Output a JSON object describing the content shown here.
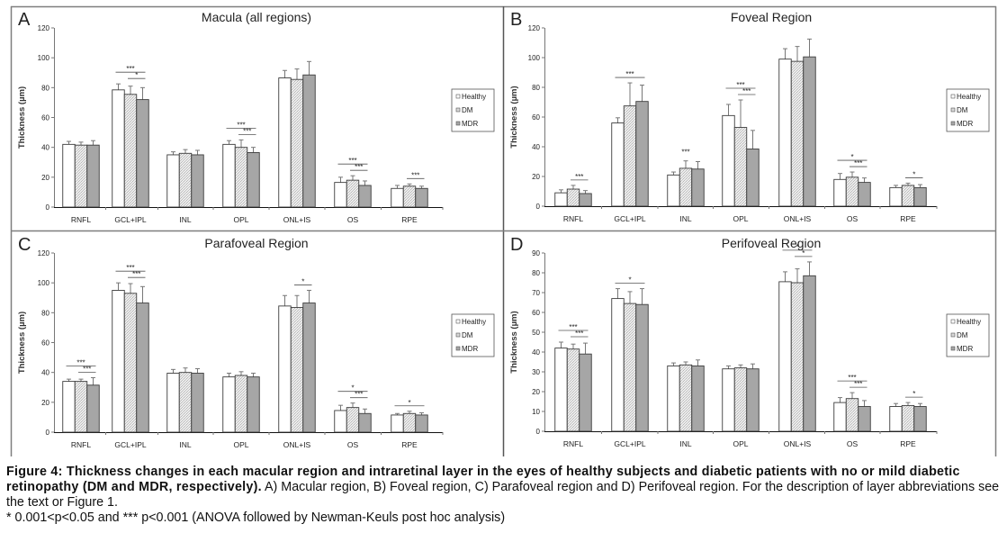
{
  "figure": {
    "caption_bold": "Figure 4: Thickness changes in each macular region and intraretinal layer in the eyes of healthy subjects and diabetic patients with no or mild diabetic retinopathy (DM and MDR, respectively).",
    "caption_rest": " A) Macular region, B) Foveal region, C) Parafoveal region and D) Perifoveal region. For the description of layer abbreviations see the text or Figure 1.",
    "caption_note": "* 0.001<p<0.05 and *** p<0.001 (ANOVA followed by Newman-Keuls post hoc analysis)"
  },
  "colors": {
    "healthy": "#ffffff",
    "dm": "#e4e4e4",
    "mdr": "#a6a6a6",
    "border": "#7f7f7f",
    "bar_outline": "#3c3c3c"
  },
  "chart_data": [
    {
      "type": "bar",
      "panel": "A",
      "title": "Macula (all regions)",
      "xlabel": "",
      "ylabel": "Thickness (µm)",
      "ylim": [
        0,
        120
      ],
      "yticks": [
        0,
        20,
        40,
        60,
        80,
        100,
        120
      ],
      "grid": false,
      "legend": "right",
      "categories": [
        "RNFL",
        "GCL+IPL",
        "INL",
        "OPL",
        "ONL+IS",
        "OS",
        "RPE"
      ],
      "series": [
        {
          "name": "Healthy",
          "values": [
            42,
            78.5,
            35,
            42,
            86.5,
            16.5,
            12.5
          ],
          "errors": [
            2,
            4,
            2,
            2.5,
            5,
            3.5,
            2
          ]
        },
        {
          "name": "DM",
          "values": [
            41.5,
            75.5,
            36,
            40,
            85.5,
            18,
            14
          ],
          "errors": [
            2,
            5.5,
            2.5,
            5,
            7,
            3,
            1.5
          ]
        },
        {
          "name": "MDR",
          "values": [
            41.5,
            72,
            35,
            36.5,
            88.5,
            14.5,
            12.5
          ],
          "errors": [
            3,
            8,
            3,
            3.5,
            9,
            3,
            1.5
          ]
        }
      ],
      "annotations": [
        {
          "category": "GCL+IPL",
          "pairs": [
            {
              "from": "Healthy",
              "to": "MDR",
              "label": "***"
            },
            {
              "from": "DM",
              "to": "MDR",
              "label": "*"
            }
          ]
        },
        {
          "category": "OPL",
          "pairs": [
            {
              "from": "Healthy",
              "to": "MDR",
              "label": "***"
            },
            {
              "from": "DM",
              "to": "MDR",
              "label": "***"
            }
          ]
        },
        {
          "category": "OS",
          "pairs": [
            {
              "from": "Healthy",
              "to": "MDR",
              "label": "***"
            },
            {
              "from": "DM",
              "to": "MDR",
              "label": "***"
            }
          ]
        },
        {
          "category": "RPE",
          "pairs": [
            {
              "from": "DM",
              "to": "MDR",
              "label": "***"
            }
          ]
        }
      ]
    },
    {
      "type": "bar",
      "panel": "B",
      "title": "Foveal Region",
      "xlabel": "",
      "ylabel": "Thickness (µm)",
      "ylim": [
        0,
        120
      ],
      "yticks": [
        0,
        20,
        40,
        60,
        80,
        100,
        120
      ],
      "grid": false,
      "legend": "right",
      "categories": [
        "RNFL",
        "GCL+IPL",
        "INL",
        "OPL",
        "ONL+IS",
        "OS",
        "RPE"
      ],
      "series": [
        {
          "name": "Healthy",
          "values": [
            9,
            56,
            21,
            61,
            99,
            18,
            12.5
          ],
          "errors": [
            2,
            3.5,
            2,
            7.5,
            7,
            4,
            1.5
          ]
        },
        {
          "name": "DM",
          "values": [
            11.5,
            67.5,
            25.5,
            53,
            97.5,
            19.5,
            14
          ],
          "errors": [
            2.5,
            15.5,
            5,
            18.5,
            10,
            3.5,
            1.5
          ]
        },
        {
          "name": "MDR",
          "values": [
            8.5,
            70.5,
            25,
            38.5,
            100.5,
            16,
            12.5
          ],
          "errors": [
            2,
            11,
            5,
            12.5,
            12,
            3,
            2
          ]
        }
      ],
      "annotations": [
        {
          "category": "RNFL",
          "pairs": [
            {
              "from": "DM",
              "to": "MDR",
              "label": "***"
            }
          ]
        },
        {
          "category": "GCL+IPL",
          "pairs": [
            {
              "from": "Healthy",
              "to": "MDR",
              "label": "***"
            }
          ]
        },
        {
          "category": "INL",
          "pairs": [
            {
              "from": "DM",
              "to": "DM",
              "label": "***"
            }
          ]
        },
        {
          "category": "OPL",
          "pairs": [
            {
              "from": "Healthy",
              "to": "MDR",
              "label": "***"
            },
            {
              "from": "DM",
              "to": "MDR",
              "label": "***"
            }
          ]
        },
        {
          "category": "OS",
          "pairs": [
            {
              "from": "Healthy",
              "to": "MDR",
              "label": "*"
            },
            {
              "from": "DM",
              "to": "MDR",
              "label": "***"
            }
          ]
        },
        {
          "category": "RPE",
          "pairs": [
            {
              "from": "DM",
              "to": "MDR",
              "label": "*"
            }
          ]
        }
      ]
    },
    {
      "type": "bar",
      "panel": "C",
      "title": "Parafoveal Region",
      "xlabel": "",
      "ylabel": "Thickness (µm)",
      "ylim": [
        0,
        120
      ],
      "yticks": [
        0,
        20,
        40,
        60,
        80,
        100,
        120
      ],
      "grid": false,
      "legend": "right",
      "categories": [
        "RNFL",
        "GCL+IPL",
        "INL",
        "OPL",
        "ONL+IS",
        "OS",
        "RPE"
      ],
      "series": [
        {
          "name": "Healthy",
          "values": [
            34,
            95,
            39.5,
            37,
            84.5,
            14.5,
            11.5
          ],
          "errors": [
            1.5,
            5,
            2.5,
            2.5,
            7,
            3.5,
            1
          ]
        },
        {
          "name": "DM",
          "values": [
            34,
            93,
            40,
            38,
            83.5,
            16.5,
            12.5
          ],
          "errors": [
            1.5,
            6.5,
            3,
            2.5,
            8,
            3,
            1.5
          ]
        },
        {
          "name": "MDR",
          "values": [
            31.5,
            86.5,
            39.5,
            37,
            86.5,
            12.5,
            11.5
          ],
          "errors": [
            5,
            11,
            3,
            2.5,
            8.5,
            3,
            1.5
          ]
        }
      ],
      "annotations": [
        {
          "category": "RNFL",
          "pairs": [
            {
              "from": "Healthy",
              "to": "MDR",
              "label": "***"
            },
            {
              "from": "DM",
              "to": "MDR",
              "label": "***"
            }
          ]
        },
        {
          "category": "GCL+IPL",
          "pairs": [
            {
              "from": "Healthy",
              "to": "MDR",
              "label": "***"
            },
            {
              "from": "DM",
              "to": "MDR",
              "label": "***"
            }
          ]
        },
        {
          "category": "ONL+IS",
          "pairs": [
            {
              "from": "DM",
              "to": "MDR",
              "label": "*"
            }
          ]
        },
        {
          "category": "OS",
          "pairs": [
            {
              "from": "Healthy",
              "to": "MDR",
              "label": "*"
            },
            {
              "from": "DM",
              "to": "MDR",
              "label": "***"
            }
          ]
        },
        {
          "category": "RPE",
          "pairs": [
            {
              "from": "Healthy",
              "to": "MDR",
              "label": "*"
            }
          ]
        }
      ]
    },
    {
      "type": "bar",
      "panel": "D",
      "title": "Perifoveal Region",
      "xlabel": "",
      "ylabel": "Thickness (µm)",
      "ylim": [
        0,
        90
      ],
      "yticks": [
        0,
        10,
        20,
        30,
        40,
        50,
        60,
        70,
        80,
        90
      ],
      "grid": false,
      "legend": "right",
      "categories": [
        "RNFL",
        "GCL+IPL",
        "INL",
        "OPL",
        "ONL+IS",
        "OS",
        "RPE"
      ],
      "series": [
        {
          "name": "Healthy",
          "values": [
            42,
            67,
            33,
            31.5,
            75.5,
            14.5,
            12.5
          ],
          "errors": [
            3,
            5,
            1.5,
            1.5,
            5,
            2.5,
            1.5
          ]
        },
        {
          "name": "DM",
          "values": [
            41.5,
            64.5,
            33.5,
            32,
            75,
            16.5,
            13
          ],
          "errors": [
            2.5,
            6,
            1.5,
            1.5,
            7,
            3,
            1.5
          ]
        },
        {
          "name": "MDR",
          "values": [
            39,
            64,
            33,
            31.5,
            78.5,
            12.5,
            12.5
          ],
          "errors": [
            5.5,
            8,
            3,
            2.5,
            7,
            3,
            1.5
          ]
        }
      ],
      "annotations": [
        {
          "category": "RNFL",
          "pairs": [
            {
              "from": "Healthy",
              "to": "MDR",
              "label": "***"
            },
            {
              "from": "DM",
              "to": "MDR",
              "label": "***"
            }
          ]
        },
        {
          "category": "GCL+IPL",
          "pairs": [
            {
              "from": "Healthy",
              "to": "MDR",
              "label": "*"
            }
          ]
        },
        {
          "category": "ONL+IS",
          "pairs": [
            {
              "from": "Healthy",
              "to": "MDR",
              "label": "*"
            },
            {
              "from": "DM",
              "to": "MDR",
              "label": "*"
            }
          ]
        },
        {
          "category": "OS",
          "pairs": [
            {
              "from": "Healthy",
              "to": "MDR",
              "label": "***"
            },
            {
              "from": "DM",
              "to": "MDR",
              "label": "***"
            }
          ]
        },
        {
          "category": "RPE",
          "pairs": [
            {
              "from": "DM",
              "to": "MDR",
              "label": "*"
            }
          ]
        }
      ]
    }
  ]
}
